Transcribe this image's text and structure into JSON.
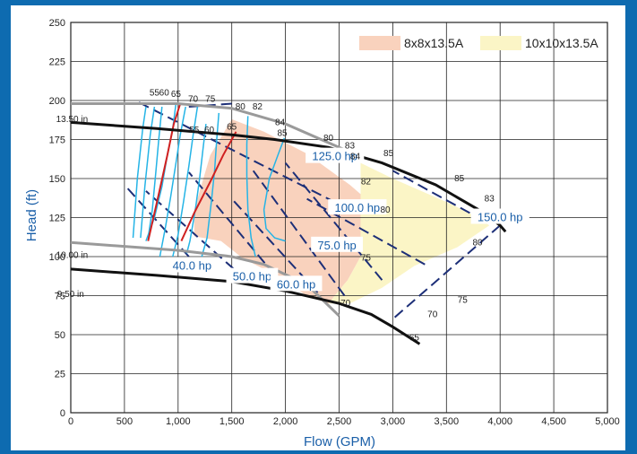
{
  "chart_data": {
    "type": "line",
    "title": "",
    "xlabel": "Flow (GPM)",
    "ylabel": "Head (ft)",
    "xlim": [
      0,
      5000
    ],
    "ylim": [
      0,
      250
    ],
    "grid": true,
    "legend_position": "top-right",
    "x_ticks": [
      0,
      500,
      1000,
      1500,
      2000,
      2500,
      3000,
      3500,
      4000,
      4500,
      5000
    ],
    "x_tick_labels": [
      "0",
      "500",
      "1,000",
      "1,500",
      "2,000",
      "2,500",
      "3,000",
      "3,500",
      "4,000",
      "4,500",
      "5,000"
    ],
    "y_ticks": [
      0,
      25,
      50,
      75,
      100,
      125,
      150,
      175,
      200,
      225,
      250
    ],
    "y_tick_labels": [
      "0",
      "25",
      "50",
      "75",
      "100",
      "125",
      "150",
      "175",
      "200",
      "225",
      "250"
    ],
    "legend": [
      {
        "name": "8x8x13.5A",
        "color": "#f9d2bd"
      },
      {
        "name": "10x10x13.5A",
        "color": "#fbf5c6"
      }
    ],
    "regions": [
      {
        "name": "8x8x13.5A",
        "color": "#f9d2bd",
        "points": [
          [
            1500,
            188
          ],
          [
            1800,
            180
          ],
          [
            2200,
            166
          ],
          [
            2600,
            146
          ],
          [
            2700,
            140
          ],
          [
            2700,
            100
          ],
          [
            2580,
            85
          ],
          [
            2400,
            70
          ],
          [
            2200,
            75
          ],
          [
            1800,
            92
          ],
          [
            1600,
            99
          ],
          [
            1400,
            110
          ],
          [
            1150,
            113
          ],
          [
            1150,
            130
          ],
          [
            1300,
            165
          ]
        ]
      },
      {
        "name": "10x10x13.5A",
        "color": "#fbf5c6",
        "points": [
          [
            2700,
            160
          ],
          [
            3000,
            150
          ],
          [
            3500,
            135
          ],
          [
            3800,
            125
          ],
          [
            3900,
            120
          ],
          [
            3600,
            106
          ],
          [
            3200,
            94
          ],
          [
            2900,
            80
          ],
          [
            2600,
            70
          ],
          [
            2400,
            70
          ],
          [
            2580,
            85
          ],
          [
            2700,
            100
          ],
          [
            2700,
            140
          ]
        ]
      }
    ],
    "series": [
      {
        "name": "13.50 in",
        "style": "impeller-gray",
        "points": [
          [
            0,
            198
          ],
          [
            1000,
            198
          ],
          [
            1500,
            195
          ],
          [
            2000,
            185
          ],
          [
            2500,
            170
          ],
          [
            2700,
            164
          ]
        ]
      },
      {
        "name": "10.00 in",
        "style": "impeller-gray",
        "points": [
          [
            0,
            109
          ],
          [
            1000,
            104
          ],
          [
            1500,
            100
          ],
          [
            1800,
            95
          ],
          [
            2200,
            82
          ],
          [
            2500,
            62
          ]
        ]
      },
      {
        "name": "",
        "style": "impeller-black",
        "points": [
          [
            0,
            186
          ],
          [
            800,
            182
          ],
          [
            1500,
            178
          ],
          [
            1900,
            175
          ],
          [
            2400,
            170
          ],
          [
            2900,
            160
          ],
          [
            3400,
            146
          ],
          [
            3800,
            130
          ],
          [
            4000,
            120
          ],
          [
            4050,
            116
          ]
        ]
      },
      {
        "name": "9.50 in",
        "style": "impeller-black",
        "points": [
          [
            0,
            92
          ],
          [
            800,
            88
          ],
          [
            1500,
            84
          ],
          [
            2000,
            78
          ],
          [
            2500,
            70
          ],
          [
            2800,
            63
          ],
          [
            3000,
            55
          ],
          [
            3250,
            44
          ]
        ]
      }
    ],
    "red_curves": [
      [
        [
          720,
          110
        ],
        [
          820,
          140
        ],
        [
          900,
          165
        ],
        [
          960,
          185
        ],
        [
          1020,
          198
        ]
      ],
      [
        [
          1030,
          110
        ],
        [
          1150,
          128
        ],
        [
          1300,
          148
        ],
        [
          1420,
          165
        ],
        [
          1540,
          180
        ]
      ]
    ],
    "iso_curves": [
      [
        [
          980,
          198
        ],
        [
          950,
          182
        ],
        [
          900,
          165
        ],
        [
          850,
          145
        ],
        [
          780,
          125
        ],
        [
          700,
          110
        ]
      ],
      [
        [
          1070,
          196
        ],
        [
          1020,
          178
        ],
        [
          980,
          160
        ],
        [
          930,
          138
        ],
        [
          880,
          118
        ],
        [
          830,
          100
        ]
      ],
      [
        [
          1180,
          196
        ],
        [
          1140,
          178
        ],
        [
          1100,
          158
        ],
        [
          1050,
          135
        ],
        [
          1000,
          114
        ],
        [
          950,
          100
        ]
      ],
      [
        [
          1260,
          185
        ],
        [
          1230,
          168
        ],
        [
          1200,
          150
        ],
        [
          1160,
          130
        ],
        [
          1110,
          110
        ],
        [
          1080,
          102
        ]
      ],
      [
        [
          1380,
          192
        ],
        [
          1360,
          175
        ],
        [
          1340,
          155
        ],
        [
          1310,
          135
        ],
        [
          1270,
          112
        ],
        [
          1220,
          100
        ]
      ],
      [
        [
          1650,
          190
        ],
        [
          1640,
          172
        ],
        [
          1640,
          152
        ],
        [
          1650,
          130
        ],
        [
          1680,
          112
        ],
        [
          1720,
          100
        ]
      ],
      [
        [
          1990,
          176
        ],
        [
          1930,
          165
        ],
        [
          1850,
          150
        ],
        [
          1800,
          130
        ],
        [
          1820,
          118
        ],
        [
          1900,
          112
        ],
        [
          2000,
          110
        ]
      ],
      [
        [
          850,
          196
        ],
        [
          820,
          175
        ],
        [
          790,
          152
        ],
        [
          760,
          130
        ],
        [
          720,
          112
        ]
      ],
      [
        [
          580,
          112
        ],
        [
          620,
          150
        ],
        [
          670,
          182
        ],
        [
          700,
          196
        ]
      ],
      [
        [
          650,
          112
        ],
        [
          690,
          145
        ],
        [
          740,
          178
        ],
        [
          780,
          196
        ]
      ]
    ],
    "hp_lines": [
      {
        "label": "40.0 hp",
        "label_at": [
          1130,
          94
        ],
        "points": [
          [
            1100,
            100
          ],
          [
            500,
            146
          ]
        ]
      },
      {
        "label": "50.0 hp",
        "label_at": [
          1690,
          87
        ],
        "points": [
          [
            1520,
            92
          ],
          [
            700,
            142
          ]
        ]
      },
      {
        "label": "60.0 hp",
        "label_at": [
          2100,
          82
        ],
        "points": [
          [
            2000,
            80
          ],
          [
            1100,
            154
          ]
        ]
      },
      {
        "label": "75.0 hp",
        "label_at": [
          2480,
          107
        ],
        "points": [
          [
            2300,
            77
          ],
          [
            1500,
            137
          ]
        ]
      },
      {
        "label": "100.0 hp",
        "label_at": [
          2670,
          131
        ],
        "points": [
          [
            2550,
            75
          ],
          [
            1700,
            155
          ]
        ]
      },
      {
        "label": "125.0 hp",
        "label_at": [
          2460,
          164
        ],
        "points": [
          [
            2900,
            85
          ],
          [
            2000,
            160
          ]
        ]
      },
      {
        "label": "150.0 hp",
        "label_at": [
          4000,
          125
        ],
        "points": [
          [
            3850,
            123
          ],
          [
            3000,
            155
          ]
        ]
      }
    ],
    "hp_extra_lines": [
      [
        [
          4000,
          120
        ],
        [
          3000,
          60
        ]
      ],
      [
        [
          3300,
          95
        ],
        [
          2200,
          137
        ]
      ],
      [
        [
          2600,
          130
        ],
        [
          600,
          200
        ]
      ],
      [
        [
          1100,
          196
        ],
        [
          1500,
          198
        ]
      ]
    ],
    "label_points_x_top": [
      {
        "text": "55",
        "at": [
          780,
          205
        ]
      },
      {
        "text": "60",
        "at": [
          870,
          205
        ]
      },
      {
        "text": "65",
        "at": [
          980,
          204
        ]
      },
      {
        "text": "70",
        "at": [
          1140,
          201
        ]
      },
      {
        "text": "75",
        "at": [
          1300,
          201
        ]
      },
      {
        "text": "80",
        "at": [
          1580,
          196
        ]
      },
      {
        "text": "82",
        "at": [
          1740,
          196
        ]
      },
      {
        "text": "84",
        "at": [
          1950,
          186
        ]
      },
      {
        "text": "85",
        "at": [
          1970,
          179
        ]
      },
      {
        "text": "55",
        "at": [
          1150,
          181
        ]
      },
      {
        "text": "60",
        "at": [
          1290,
          181
        ]
      },
      {
        "text": "65",
        "at": [
          1500,
          183
        ]
      }
    ],
    "efficiency_labels_right": [
      {
        "text": "80",
        "at": [
          2400,
          176
        ]
      },
      {
        "text": "83",
        "at": [
          2600,
          171
        ]
      },
      {
        "text": "84",
        "at": [
          2650,
          164
        ]
      },
      {
        "text": "85",
        "at": [
          2960,
          166
        ]
      },
      {
        "text": "82",
        "at": [
          2750,
          148
        ]
      },
      {
        "text": "85",
        "at": [
          3620,
          150
        ]
      },
      {
        "text": "80",
        "at": [
          2930,
          130
        ]
      },
      {
        "text": "83",
        "at": [
          3900,
          137
        ]
      },
      {
        "text": "80",
        "at": [
          3790,
          109
        ]
      },
      {
        "text": "75",
        "at": [
          2750,
          99
        ]
      },
      {
        "text": "75",
        "at": [
          3650,
          72
        ]
      },
      {
        "text": "70",
        "at": [
          2560,
          70
        ]
      },
      {
        "text": "70",
        "at": [
          3370,
          63
        ]
      },
      {
        "text": "65",
        "at": [
          3200,
          48
        ]
      }
    ],
    "diameter_labels": [
      {
        "text": "13.50 in",
        "at": [
          30,
          188
        ]
      },
      {
        "text": "10.00 in",
        "at": [
          30,
          101
        ]
      },
      {
        "text": "9.50 in",
        "at": [
          40,
          76
        ]
      }
    ]
  }
}
